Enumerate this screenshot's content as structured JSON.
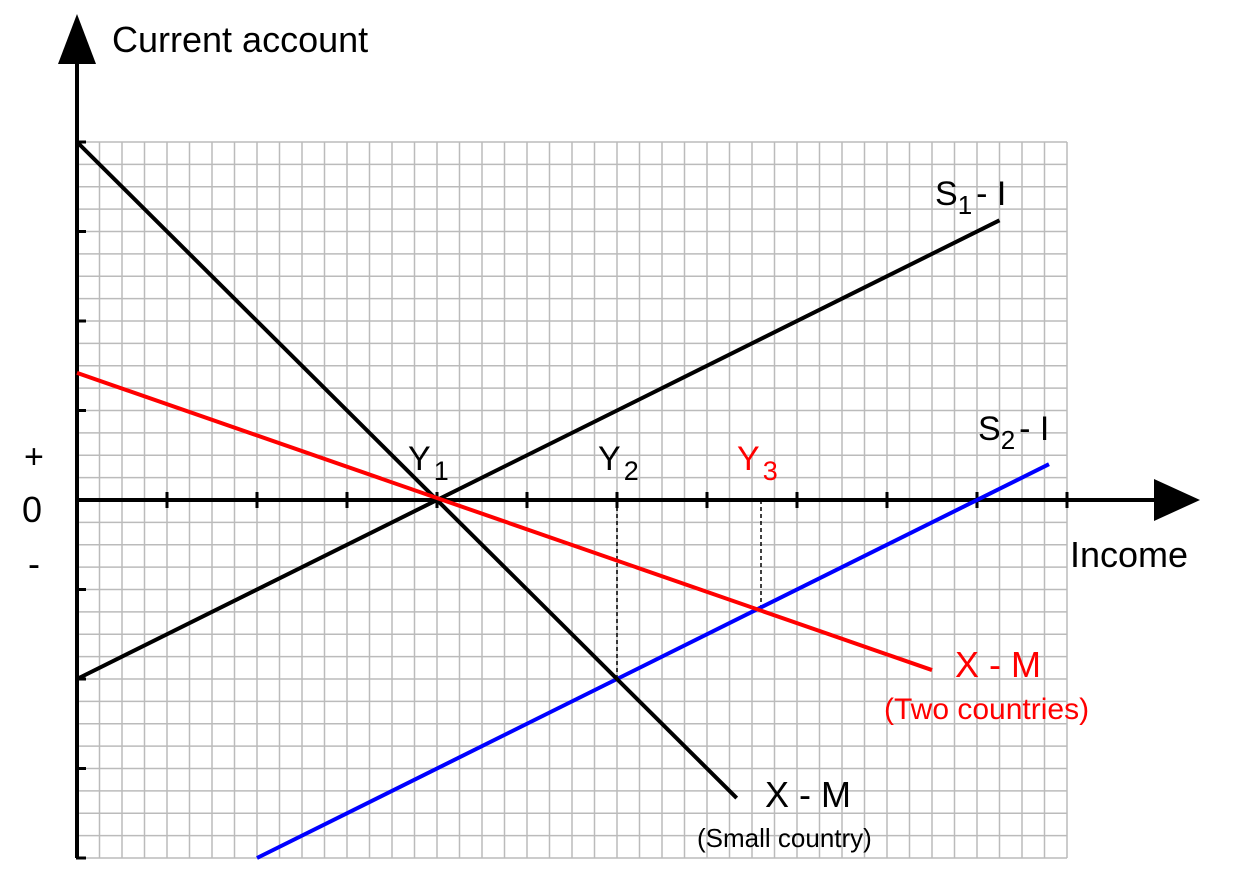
{
  "chart_data": {
    "type": "line",
    "title": "",
    "ylabel": "Current account",
    "xlabel": "Income",
    "xlim": [
      0,
      11
    ],
    "ylim": [
      -4,
      4
    ],
    "grid": true,
    "sign_labels": {
      "plus": "+",
      "zero": "0",
      "minus": "-"
    },
    "series": [
      {
        "name": "S1 - I",
        "label_main": "S",
        "label_sub": "1",
        "label_rest": "- I",
        "color": "#000000",
        "points": [
          [
            0,
            -2
          ],
          [
            10.25,
            3.125
          ]
        ]
      },
      {
        "name": "S2 - I",
        "label_main": "S",
        "label_sub": "2",
        "label_rest": "- I",
        "color": "#0000ff",
        "points": [
          [
            2,
            -4
          ],
          [
            10.8,
            0.4
          ]
        ]
      },
      {
        "name": "X - M",
        "label_main": "X - M",
        "note": "(Small country)",
        "color": "#000000",
        "points": [
          [
            0,
            4
          ],
          [
            7.33,
            -3.33
          ]
        ]
      },
      {
        "name": "X - M",
        "label_main": "X - M",
        "note": "(Two countries)",
        "color": "#ff0000",
        "points": [
          [
            0,
            1.42
          ],
          [
            9.5,
            -1.9
          ]
        ]
      }
    ],
    "markers": [
      {
        "main": "Y",
        "sub": "1",
        "x": 4,
        "color": "#000000",
        "y_on_curve": 0
      },
      {
        "main": "Y",
        "sub": "2",
        "x": 6,
        "color": "#000000",
        "y_on_curve": -2
      },
      {
        "main": "Y",
        "sub": "3",
        "x": 7.6,
        "color": "#ff0000",
        "y_on_curve": -1.2
      }
    ]
  }
}
